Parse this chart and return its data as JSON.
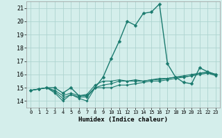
{
  "xlabel": "Humidex (Indice chaleur)",
  "bg_color": "#d4eeeb",
  "grid_color": "#aed4d0",
  "line_color": "#1a7a6e",
  "xlim": [
    -0.5,
    23.5
  ],
  "ylim": [
    13.5,
    21.5
  ],
  "yticks": [
    14,
    15,
    16,
    17,
    18,
    19,
    20,
    21
  ],
  "xticks": [
    0,
    1,
    2,
    3,
    4,
    5,
    6,
    7,
    8,
    9,
    10,
    11,
    12,
    13,
    14,
    15,
    16,
    17,
    18,
    19,
    20,
    21,
    22,
    23
  ],
  "lines": [
    {
      "x": [
        0,
        1,
        2,
        3,
        4,
        5,
        6,
        7,
        8,
        9,
        10,
        11,
        12,
        13,
        14,
        15,
        16,
        17,
        18,
        19,
        20,
        21,
        22,
        23
      ],
      "y": [
        14.8,
        14.9,
        15.0,
        15.0,
        14.6,
        15.0,
        14.4,
        14.4,
        15.0,
        15.8,
        17.2,
        18.5,
        20.0,
        19.7,
        20.6,
        20.7,
        21.3,
        16.8,
        15.8,
        15.4,
        15.3,
        16.5,
        16.2,
        16.0
      ],
      "marker": "D",
      "markersize": 2.5,
      "lw": 1.0
    },
    {
      "x": [
        0,
        1,
        2,
        3,
        4,
        5,
        6,
        7,
        8,
        9,
        10,
        11,
        12,
        13,
        14,
        15,
        16,
        17,
        18,
        19,
        20,
        21,
        22,
        23
      ],
      "y": [
        14.8,
        14.9,
        15.0,
        14.6,
        14.0,
        14.5,
        14.2,
        14.0,
        15.0,
        15.0,
        15.0,
        15.2,
        15.2,
        15.3,
        15.4,
        15.5,
        15.5,
        15.6,
        15.7,
        15.8,
        15.9,
        16.1,
        16.2,
        16.0
      ],
      "marker": "D",
      "markersize": 1.8,
      "lw": 0.8
    },
    {
      "x": [
        0,
        1,
        2,
        3,
        4,
        5,
        6,
        7,
        8,
        9,
        10,
        11,
        12,
        13,
        14,
        15,
        16,
        17,
        18,
        19,
        20,
        21,
        22,
        23
      ],
      "y": [
        14.8,
        14.9,
        15.0,
        14.7,
        14.2,
        14.5,
        14.3,
        14.3,
        15.0,
        15.2,
        15.3,
        15.5,
        15.5,
        15.6,
        15.5,
        15.6,
        15.7,
        15.7,
        15.8,
        15.8,
        15.9,
        16.0,
        16.1,
        15.9
      ],
      "marker": "D",
      "markersize": 1.8,
      "lw": 0.8
    },
    {
      "x": [
        0,
        1,
        2,
        3,
        4,
        5,
        6,
        7,
        8,
        9,
        10,
        11,
        12,
        13,
        14,
        15,
        16,
        17,
        18,
        19,
        20,
        21,
        22,
        23
      ],
      "y": [
        14.8,
        14.9,
        15.0,
        14.8,
        14.4,
        14.6,
        14.4,
        14.5,
        15.2,
        15.5,
        15.5,
        15.6,
        15.5,
        15.5,
        15.5,
        15.6,
        15.6,
        15.7,
        15.8,
        15.9,
        16.0,
        16.1,
        16.1,
        16.0
      ],
      "marker": "D",
      "markersize": 1.8,
      "lw": 0.8
    }
  ]
}
